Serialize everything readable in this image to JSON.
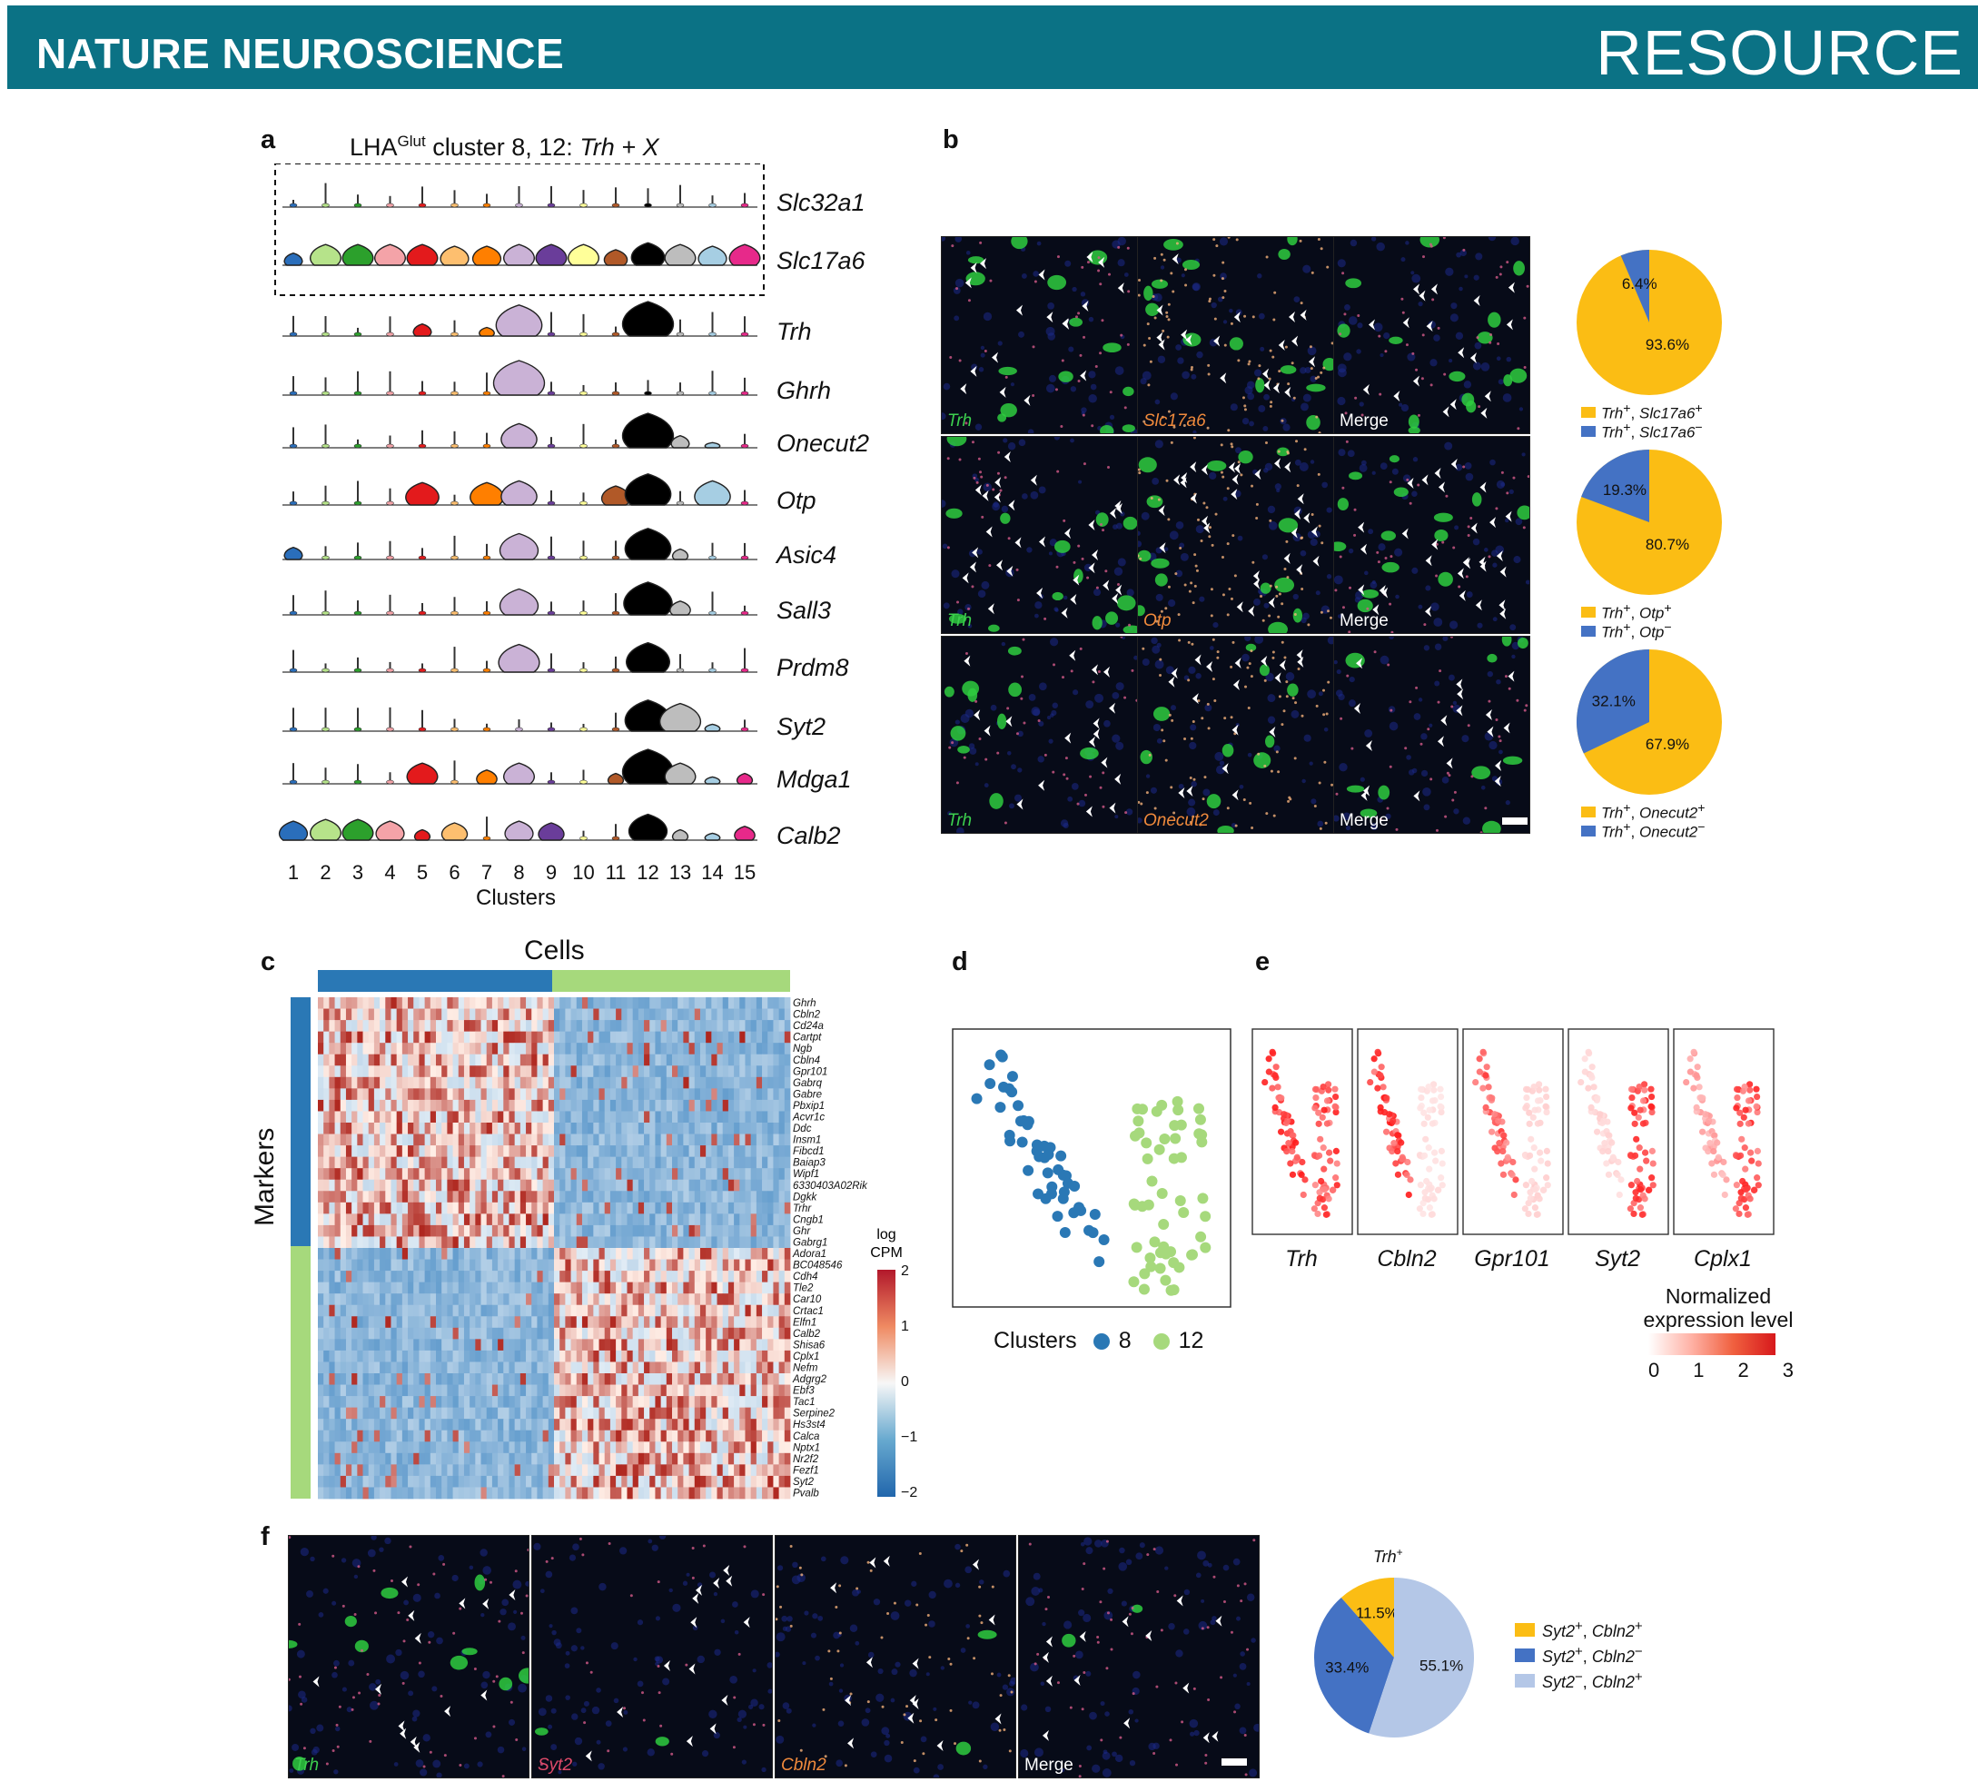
{
  "header": {
    "journal": "NATURE NEUROSCIENCE",
    "section": "RESOURCE"
  },
  "panel_a": {
    "label": "a",
    "title_prefix": "LHA",
    "title_sup": "Glut",
    "title_mid": " cluster 8, 12: ",
    "title_italic": "Trh + X",
    "genes": [
      "Slc32a1",
      "Slc17a6",
      "Trh",
      "Ghrh",
      "Onecut2",
      "Otp",
      "Asic4",
      "Sall3",
      "Prdm8",
      "Syt2",
      "Mdga1",
      "Calb2"
    ],
    "clusters": [
      "1",
      "2",
      "3",
      "4",
      "5",
      "6",
      "7",
      "8",
      "9",
      "10",
      "11",
      "12",
      "13",
      "14",
      "15"
    ],
    "cluster_colors": [
      "#2a6ebb",
      "#b6e38a",
      "#2ca02c",
      "#f4a3a8",
      "#e31a1c",
      "#fdbf6f",
      "#ff7f00",
      "#cab2d6",
      "#6a3d9a",
      "#ffff99",
      "#b15928",
      "#000000",
      "#bdbdbd",
      "#a6cee3",
      "#e7298a"
    ],
    "xlabel": "Clusters"
  },
  "panel_b": {
    "label": "b",
    "rows": [
      {
        "labels": [
          "Trh",
          "Slc17a6",
          "Merge"
        ],
        "pie_pos": "93.6%",
        "pie_neg": "6.4%",
        "pos_fraction": 0.936,
        "legend_pos_gene": "Slc17a6",
        "legend_neg_gene": "Slc17a6"
      },
      {
        "labels": [
          "Trh",
          "Otp",
          "Merge"
        ],
        "pie_pos": "80.7%",
        "pie_neg": "19.3%",
        "pos_fraction": 0.807,
        "legend_pos_gene": "Otp",
        "legend_neg_gene": "Otp"
      },
      {
        "labels": [
          "Trh",
          "Onecut2",
          "Merge"
        ],
        "pie_pos": "67.9%",
        "pie_neg": "32.1%",
        "pos_fraction": 0.679,
        "legend_pos_gene": "Onecut2",
        "legend_neg_gene": "Onecut2"
      }
    ],
    "legend_prefix": "Trh",
    "pos_color": "#fbbd14",
    "neg_color": "#4472c4"
  },
  "panel_c": {
    "label": "c",
    "top_label": "Cells",
    "side_label": "Markers",
    "colorbar_title_1": "log",
    "colorbar_title_2": "CPM",
    "colorbar_ticks": [
      "2",
      "1",
      "0",
      "−1",
      "−2"
    ],
    "genes": [
      "Ghrh",
      "Cbln2",
      "Cd24a",
      "Cartpt",
      "Ngb",
      "Cbln4",
      "Gpr101",
      "Gabrq",
      "Gabre",
      "Pbxip1",
      "Acvr1c",
      "Ddc",
      "Insm1",
      "Fibcd1",
      "Baiap3",
      "Wipf1",
      "6330403A02Rik",
      "Dgkk",
      "Trhr",
      "Cngb1",
      "Ghr",
      "Gabrg1",
      "Adora1",
      "BC048546",
      "Cdh4",
      "Tle2",
      "Car10",
      "Crtac1",
      "Elfn1",
      "Calb2",
      "Shisa6",
      "Cplx1",
      "Nefm",
      "Adgrg2",
      "Ebf3",
      "Tac1",
      "Serpine2",
      "Hs3st4",
      "Calca",
      "Nptx1",
      "Nr2f2",
      "Fezf1",
      "Syt2",
      "Pvalb"
    ]
  },
  "panel_d": {
    "label": "d",
    "legend_title": "Clusters",
    "legend_items": [
      {
        "name": "8",
        "color": "#2a78b5"
      },
      {
        "name": "12",
        "color": "#a6d97c"
      }
    ]
  },
  "panel_e": {
    "label": "e",
    "genes": [
      "Trh",
      "Cbln2",
      "Gpr101",
      "Syt2",
      "Cplx1"
    ],
    "scale_title_1": "Normalized",
    "scale_title_2": "expression level",
    "scale_ticks": [
      "0",
      "1",
      "2",
      "3"
    ]
  },
  "panel_f": {
    "label": "f",
    "image_labels": [
      "Trh",
      "Syt2",
      "Cbln2",
      "Merge"
    ],
    "pie_title": "Trh",
    "pie_title_sup": "+",
    "slices": [
      {
        "label": "11.5%",
        "value": 11.5,
        "color": "#fbbd14"
      },
      {
        "label": "33.4%",
        "value": 33.4,
        "color": "#4472c4"
      },
      {
        "label": "55.1%",
        "value": 55.1,
        "color": "#b4c7e7"
      }
    ],
    "legend": [
      {
        "a": "Syt2",
        "a_sign": "+",
        "b": "Cbln2",
        "b_sign": "+",
        "color": "#fbbd14"
      },
      {
        "a": "Syt2",
        "a_sign": "+",
        "b": "Cbln2",
        "b_sign": "−",
        "color": "#4472c4"
      },
      {
        "a": "Syt2",
        "a_sign": "−",
        "b": "Cbln2",
        "b_sign": "+",
        "color": "#b4c7e7"
      }
    ]
  }
}
